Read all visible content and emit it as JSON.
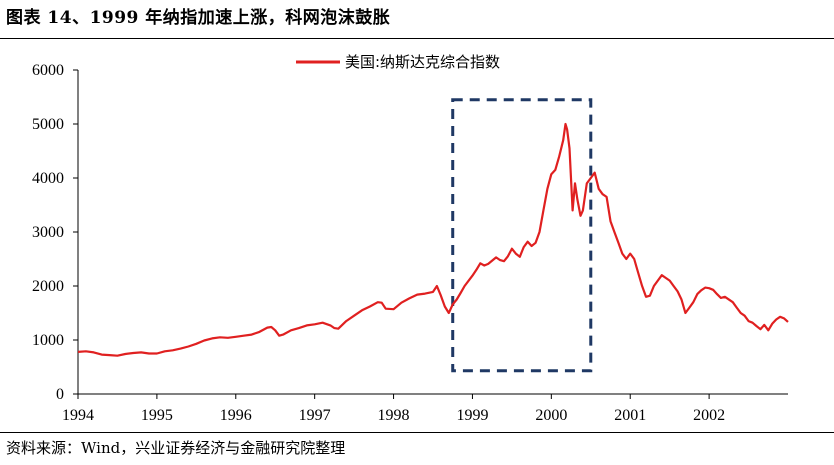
{
  "title": "图表 14、1999 年纳指加速上涨，科网泡沫鼓胀",
  "source": "资料来源：Wind，兴业证券经济与金融研究院整理",
  "chart_data": {
    "type": "line",
    "title": "",
    "xlabel": "",
    "ylabel": "",
    "xlim": [
      1994,
      2003
    ],
    "ylim": [
      0,
      6000
    ],
    "x_ticks": [
      "1994",
      "1995",
      "1996",
      "1997",
      "1998",
      "1999",
      "2000",
      "2001",
      "2002"
    ],
    "y_ticks": [
      "0",
      "1000",
      "2000",
      "3000",
      "4000",
      "5000",
      "6000"
    ],
    "grid": false,
    "legend_position": "top-center",
    "series_color": "#e02020",
    "annotation": {
      "type": "dashed-rectangle",
      "color": "#1f3864",
      "x_range": [
        1998.75,
        2000.5
      ],
      "y_range": [
        430,
        5450
      ]
    },
    "series": [
      {
        "name": "美国:纳斯达克综合指数",
        "points": [
          [
            1994.0,
            780
          ],
          [
            1994.1,
            790
          ],
          [
            1994.2,
            770
          ],
          [
            1994.3,
            730
          ],
          [
            1994.4,
            720
          ],
          [
            1994.5,
            710
          ],
          [
            1994.6,
            740
          ],
          [
            1994.7,
            760
          ],
          [
            1994.8,
            770
          ],
          [
            1994.9,
            750
          ],
          [
            1995.0,
            750
          ],
          [
            1995.1,
            790
          ],
          [
            1995.2,
            810
          ],
          [
            1995.3,
            840
          ],
          [
            1995.4,
            880
          ],
          [
            1995.5,
            930
          ],
          [
            1995.6,
            990
          ],
          [
            1995.7,
            1030
          ],
          [
            1995.8,
            1050
          ],
          [
            1995.9,
            1040
          ],
          [
            1996.0,
            1060
          ],
          [
            1996.1,
            1080
          ],
          [
            1996.2,
            1100
          ],
          [
            1996.3,
            1150
          ],
          [
            1996.4,
            1230
          ],
          [
            1996.45,
            1240
          ],
          [
            1996.5,
            1180
          ],
          [
            1996.55,
            1080
          ],
          [
            1996.6,
            1100
          ],
          [
            1996.7,
            1180
          ],
          [
            1996.8,
            1220
          ],
          [
            1996.9,
            1270
          ],
          [
            1997.0,
            1290
          ],
          [
            1997.1,
            1320
          ],
          [
            1997.2,
            1270
          ],
          [
            1997.25,
            1220
          ],
          [
            1997.3,
            1210
          ],
          [
            1997.4,
            1350
          ],
          [
            1997.5,
            1450
          ],
          [
            1997.6,
            1550
          ],
          [
            1997.7,
            1620
          ],
          [
            1997.8,
            1700
          ],
          [
            1997.85,
            1690
          ],
          [
            1997.9,
            1580
          ],
          [
            1998.0,
            1570
          ],
          [
            1998.1,
            1690
          ],
          [
            1998.2,
            1770
          ],
          [
            1998.3,
            1840
          ],
          [
            1998.4,
            1860
          ],
          [
            1998.5,
            1890
          ],
          [
            1998.55,
            2000
          ],
          [
            1998.6,
            1820
          ],
          [
            1998.65,
            1620
          ],
          [
            1998.7,
            1500
          ],
          [
            1998.75,
            1660
          ],
          [
            1998.8,
            1750
          ],
          [
            1998.85,
            1870
          ],
          [
            1998.9,
            2000
          ],
          [
            1999.0,
            2190
          ],
          [
            1999.05,
            2300
          ],
          [
            1999.1,
            2420
          ],
          [
            1999.15,
            2380
          ],
          [
            1999.2,
            2410
          ],
          [
            1999.3,
            2530
          ],
          [
            1999.35,
            2480
          ],
          [
            1999.4,
            2460
          ],
          [
            1999.45,
            2550
          ],
          [
            1999.5,
            2690
          ],
          [
            1999.55,
            2600
          ],
          [
            1999.6,
            2540
          ],
          [
            1999.65,
            2720
          ],
          [
            1999.7,
            2820
          ],
          [
            1999.75,
            2740
          ],
          [
            1999.8,
            2800
          ],
          [
            1999.85,
            3000
          ],
          [
            1999.9,
            3400
          ],
          [
            1999.95,
            3800
          ],
          [
            2000.0,
            4070
          ],
          [
            2000.05,
            4150
          ],
          [
            2000.1,
            4400
          ],
          [
            2000.15,
            4700
          ],
          [
            2000.18,
            5000
          ],
          [
            2000.2,
            4900
          ],
          [
            2000.23,
            4550
          ],
          [
            2000.27,
            3400
          ],
          [
            2000.3,
            3900
          ],
          [
            2000.33,
            3600
          ],
          [
            2000.37,
            3300
          ],
          [
            2000.4,
            3400
          ],
          [
            2000.45,
            3900
          ],
          [
            2000.5,
            4000
          ],
          [
            2000.55,
            4100
          ],
          [
            2000.6,
            3800
          ],
          [
            2000.65,
            3700
          ],
          [
            2000.7,
            3650
          ],
          [
            2000.75,
            3200
          ],
          [
            2000.8,
            3000
          ],
          [
            2000.85,
            2800
          ],
          [
            2000.9,
            2600
          ],
          [
            2000.95,
            2500
          ],
          [
            2001.0,
            2600
          ],
          [
            2001.05,
            2500
          ],
          [
            2001.1,
            2250
          ],
          [
            2001.15,
            2000
          ],
          [
            2001.2,
            1800
          ],
          [
            2001.25,
            1820
          ],
          [
            2001.3,
            2000
          ],
          [
            2001.35,
            2100
          ],
          [
            2001.4,
            2200
          ],
          [
            2001.45,
            2150
          ],
          [
            2001.5,
            2100
          ],
          [
            2001.55,
            2000
          ],
          [
            2001.6,
            1900
          ],
          [
            2001.65,
            1750
          ],
          [
            2001.7,
            1500
          ],
          [
            2001.75,
            1600
          ],
          [
            2001.8,
            1700
          ],
          [
            2001.85,
            1850
          ],
          [
            2001.9,
            1920
          ],
          [
            2001.95,
            1970
          ],
          [
            2002.0,
            1960
          ],
          [
            2002.05,
            1930
          ],
          [
            2002.1,
            1850
          ],
          [
            2002.15,
            1780
          ],
          [
            2002.2,
            1800
          ],
          [
            2002.3,
            1700
          ],
          [
            2002.35,
            1600
          ],
          [
            2002.4,
            1500
          ],
          [
            2002.45,
            1450
          ],
          [
            2002.5,
            1350
          ],
          [
            2002.55,
            1320
          ],
          [
            2002.6,
            1260
          ],
          [
            2002.65,
            1200
          ],
          [
            2002.7,
            1280
          ],
          [
            2002.75,
            1180
          ],
          [
            2002.8,
            1300
          ],
          [
            2002.85,
            1380
          ],
          [
            2002.9,
            1430
          ],
          [
            2002.95,
            1400
          ],
          [
            2003.0,
            1335
          ]
        ]
      }
    ]
  }
}
